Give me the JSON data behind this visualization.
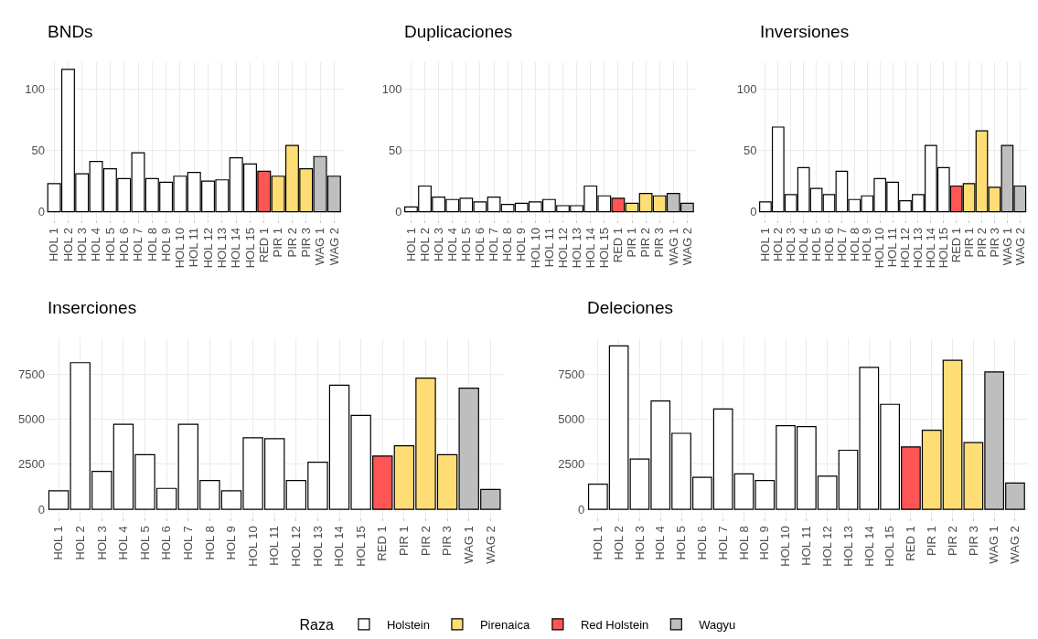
{
  "chart_data": [
    {
      "type": "bar",
      "title": "BNDs",
      "categories": [
        "HOL 1",
        "HOL 2",
        "HOL 3",
        "HOL 4",
        "HOL 5",
        "HOL 6",
        "HOL 7",
        "HOL 8",
        "HOL 9",
        "HOL 10",
        "HOL 11",
        "HOL 12",
        "HOL 13",
        "HOL 14",
        "HOL 15",
        "RED 1",
        "PIR 1",
        "PIR 2",
        "PIR 3",
        "WAG 1",
        "WAG 2"
      ],
      "ylim": [
        -6,
        122
      ],
      "yticks": [
        0,
        50,
        100
      ],
      "grid": true,
      "legend": "bottom",
      "legend_title": "Raza",
      "series": [
        {
          "name": "Holstein",
          "color": "#ffffff",
          "values": [
            23,
            116,
            31,
            41,
            35,
            27,
            48,
            27,
            24,
            29,
            32,
            25,
            26,
            44,
            39,
            null,
            null,
            null,
            null,
            null,
            null
          ]
        },
        {
          "name": "Pirenaica",
          "color": "#ffdd75",
          "values": [
            null,
            null,
            null,
            null,
            null,
            null,
            null,
            null,
            null,
            null,
            null,
            null,
            null,
            null,
            null,
            null,
            29,
            54,
            35,
            null,
            null
          ]
        },
        {
          "name": "Red Holstein",
          "color": "#ff5555",
          "values": [
            null,
            null,
            null,
            null,
            null,
            null,
            null,
            null,
            null,
            null,
            null,
            null,
            null,
            null,
            null,
            33,
            null,
            null,
            null,
            null,
            null
          ]
        },
        {
          "name": "Wagyu",
          "color": "#bebebe",
          "values": [
            null,
            null,
            null,
            null,
            null,
            null,
            null,
            null,
            null,
            null,
            null,
            null,
            null,
            null,
            null,
            null,
            null,
            null,
            null,
            45,
            29
          ]
        }
      ]
    },
    {
      "type": "bar",
      "title": "Duplicaciones",
      "categories": [
        "HOL 1",
        "HOL 2",
        "HOL 3",
        "HOL 4",
        "HOL 5",
        "HOL 6",
        "HOL 7",
        "HOL 8",
        "HOL 9",
        "HOL 10",
        "HOL 11",
        "HOL 12",
        "HOL 13",
        "HOL 14",
        "HOL 15",
        "RED 1",
        "PIR 1",
        "PIR 2",
        "PIR 3",
        "WAG 1",
        "WAG 2"
      ],
      "ylim": [
        -6,
        122
      ],
      "yticks": [
        0,
        50,
        100
      ],
      "grid": true,
      "values": [
        4,
        21,
        12,
        10,
        11,
        8,
        12,
        6,
        7,
        8,
        10,
        5,
        5,
        21,
        13,
        11,
        7,
        15,
        13,
        15,
        7
      ],
      "colors": [
        "#ffffff",
        "#ffffff",
        "#ffffff",
        "#ffffff",
        "#ffffff",
        "#ffffff",
        "#ffffff",
        "#ffffff",
        "#ffffff",
        "#ffffff",
        "#ffffff",
        "#ffffff",
        "#ffffff",
        "#ffffff",
        "#ffffff",
        "#ff5555",
        "#ffdd75",
        "#ffdd75",
        "#ffdd75",
        "#bebebe",
        "#bebebe"
      ]
    },
    {
      "type": "bar",
      "title": "Inversiones",
      "categories": [
        "HOL 1",
        "HOL 2",
        "HOL 3",
        "HOL 4",
        "HOL 5",
        "HOL 6",
        "HOL 7",
        "HOL 8",
        "HOL 9",
        "HOL 10",
        "HOL 11",
        "HOL 12",
        "HOL 13",
        "HOL 14",
        "HOL 15",
        "RED 1",
        "PIR 1",
        "PIR 2",
        "PIR 3",
        "WAG 1",
        "WAG 2"
      ],
      "ylim": [
        -6,
        122
      ],
      "yticks": [
        0,
        50,
        100
      ],
      "grid": true,
      "values": [
        8,
        69,
        14,
        36,
        19,
        14,
        33,
        10,
        13,
        27,
        24,
        9,
        14,
        54,
        36,
        21,
        23,
        66,
        20,
        54,
        21
      ],
      "colors": [
        "#ffffff",
        "#ffffff",
        "#ffffff",
        "#ffffff",
        "#ffffff",
        "#ffffff",
        "#ffffff",
        "#ffffff",
        "#ffffff",
        "#ffffff",
        "#ffffff",
        "#ffffff",
        "#ffffff",
        "#ffffff",
        "#ffffff",
        "#ff5555",
        "#ffdd75",
        "#ffdd75",
        "#ffdd75",
        "#bebebe",
        "#bebebe"
      ]
    },
    {
      "type": "bar",
      "title": "Inserciones",
      "categories": [
        "HOL 1",
        "HOL 2",
        "HOL 3",
        "HOL 4",
        "HOL 5",
        "HOL 6",
        "HOL 7",
        "HOL 8",
        "HOL 9",
        "HOL 10",
        "HOL 11",
        "HOL 12",
        "HOL 13",
        "HOL 14",
        "HOL 15",
        "RED 1",
        "PIR 1",
        "PIR 2",
        "PIR 3",
        "WAG 1",
        "WAG 2"
      ],
      "ylim": [
        -460,
        9510
      ],
      "yticks": [
        0,
        2500,
        5000,
        7500
      ],
      "grid": true,
      "values": [
        1030,
        8140,
        2110,
        4720,
        3030,
        1160,
        4720,
        1600,
        1030,
        3970,
        3920,
        1600,
        2610,
        6890,
        5220,
        2960,
        3530,
        7280,
        3030,
        6730,
        1100
      ],
      "colors": [
        "#ffffff",
        "#ffffff",
        "#ffffff",
        "#ffffff",
        "#ffffff",
        "#ffffff",
        "#ffffff",
        "#ffffff",
        "#ffffff",
        "#ffffff",
        "#ffffff",
        "#ffffff",
        "#ffffff",
        "#ffffff",
        "#ffffff",
        "#ff5555",
        "#ffdd75",
        "#ffdd75",
        "#ffdd75",
        "#bebebe",
        "#bebebe"
      ]
    },
    {
      "type": "bar",
      "title": "Deleciones",
      "categories": [
        "HOL 1",
        "HOL 2",
        "HOL 3",
        "HOL 4",
        "HOL 5",
        "HOL 6",
        "HOL 7",
        "HOL 8",
        "HOL 9",
        "HOL 10",
        "HOL 11",
        "HOL 12",
        "HOL 13",
        "HOL 14",
        "HOL 15",
        "RED 1",
        "PIR 1",
        "PIR 2",
        "PIR 3",
        "WAG 1",
        "WAG 2"
      ],
      "ylim": [
        -460,
        9510
      ],
      "yticks": [
        0,
        2500,
        5000,
        7500
      ],
      "grid": true,
      "values": [
        1400,
        9070,
        2790,
        6010,
        4220,
        1780,
        5570,
        1970,
        1600,
        4640,
        4590,
        1840,
        3280,
        7880,
        5830,
        3460,
        4390,
        8270,
        3710,
        7630,
        1460
      ],
      "colors": [
        "#ffffff",
        "#ffffff",
        "#ffffff",
        "#ffffff",
        "#ffffff",
        "#ffffff",
        "#ffffff",
        "#ffffff",
        "#ffffff",
        "#ffffff",
        "#ffffff",
        "#ffffff",
        "#ffffff",
        "#ffffff",
        "#ffffff",
        "#ff5555",
        "#ffdd75",
        "#ffdd75",
        "#ffdd75",
        "#bebebe",
        "#bebebe"
      ]
    }
  ]
}
